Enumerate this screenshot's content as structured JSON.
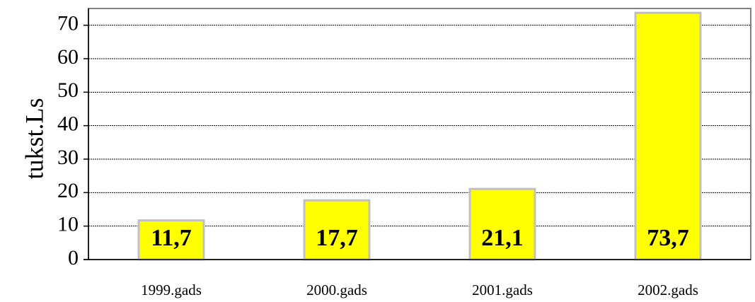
{
  "chart_data": {
    "type": "bar",
    "categories": [
      "1999.gads",
      "2000.gads",
      "2001.gads",
      "2002.gads"
    ],
    "values": [
      11.7,
      17.7,
      21.1,
      73.7
    ],
    "data_labels": [
      "11,7",
      "17,7",
      "21,1",
      "73,7"
    ],
    "title": "",
    "xlabel": "",
    "ylabel": "tukst.Ls",
    "ylim": [
      0,
      75
    ],
    "yticks": [
      0,
      10,
      20,
      30,
      40,
      50,
      60,
      70
    ],
    "grid": true,
    "legend": "none",
    "colors": {
      "bar_fill": "#ffff00",
      "bar_stroke": "#c0c0c0",
      "plot_border": "#808080",
      "grid": "#000000"
    }
  }
}
